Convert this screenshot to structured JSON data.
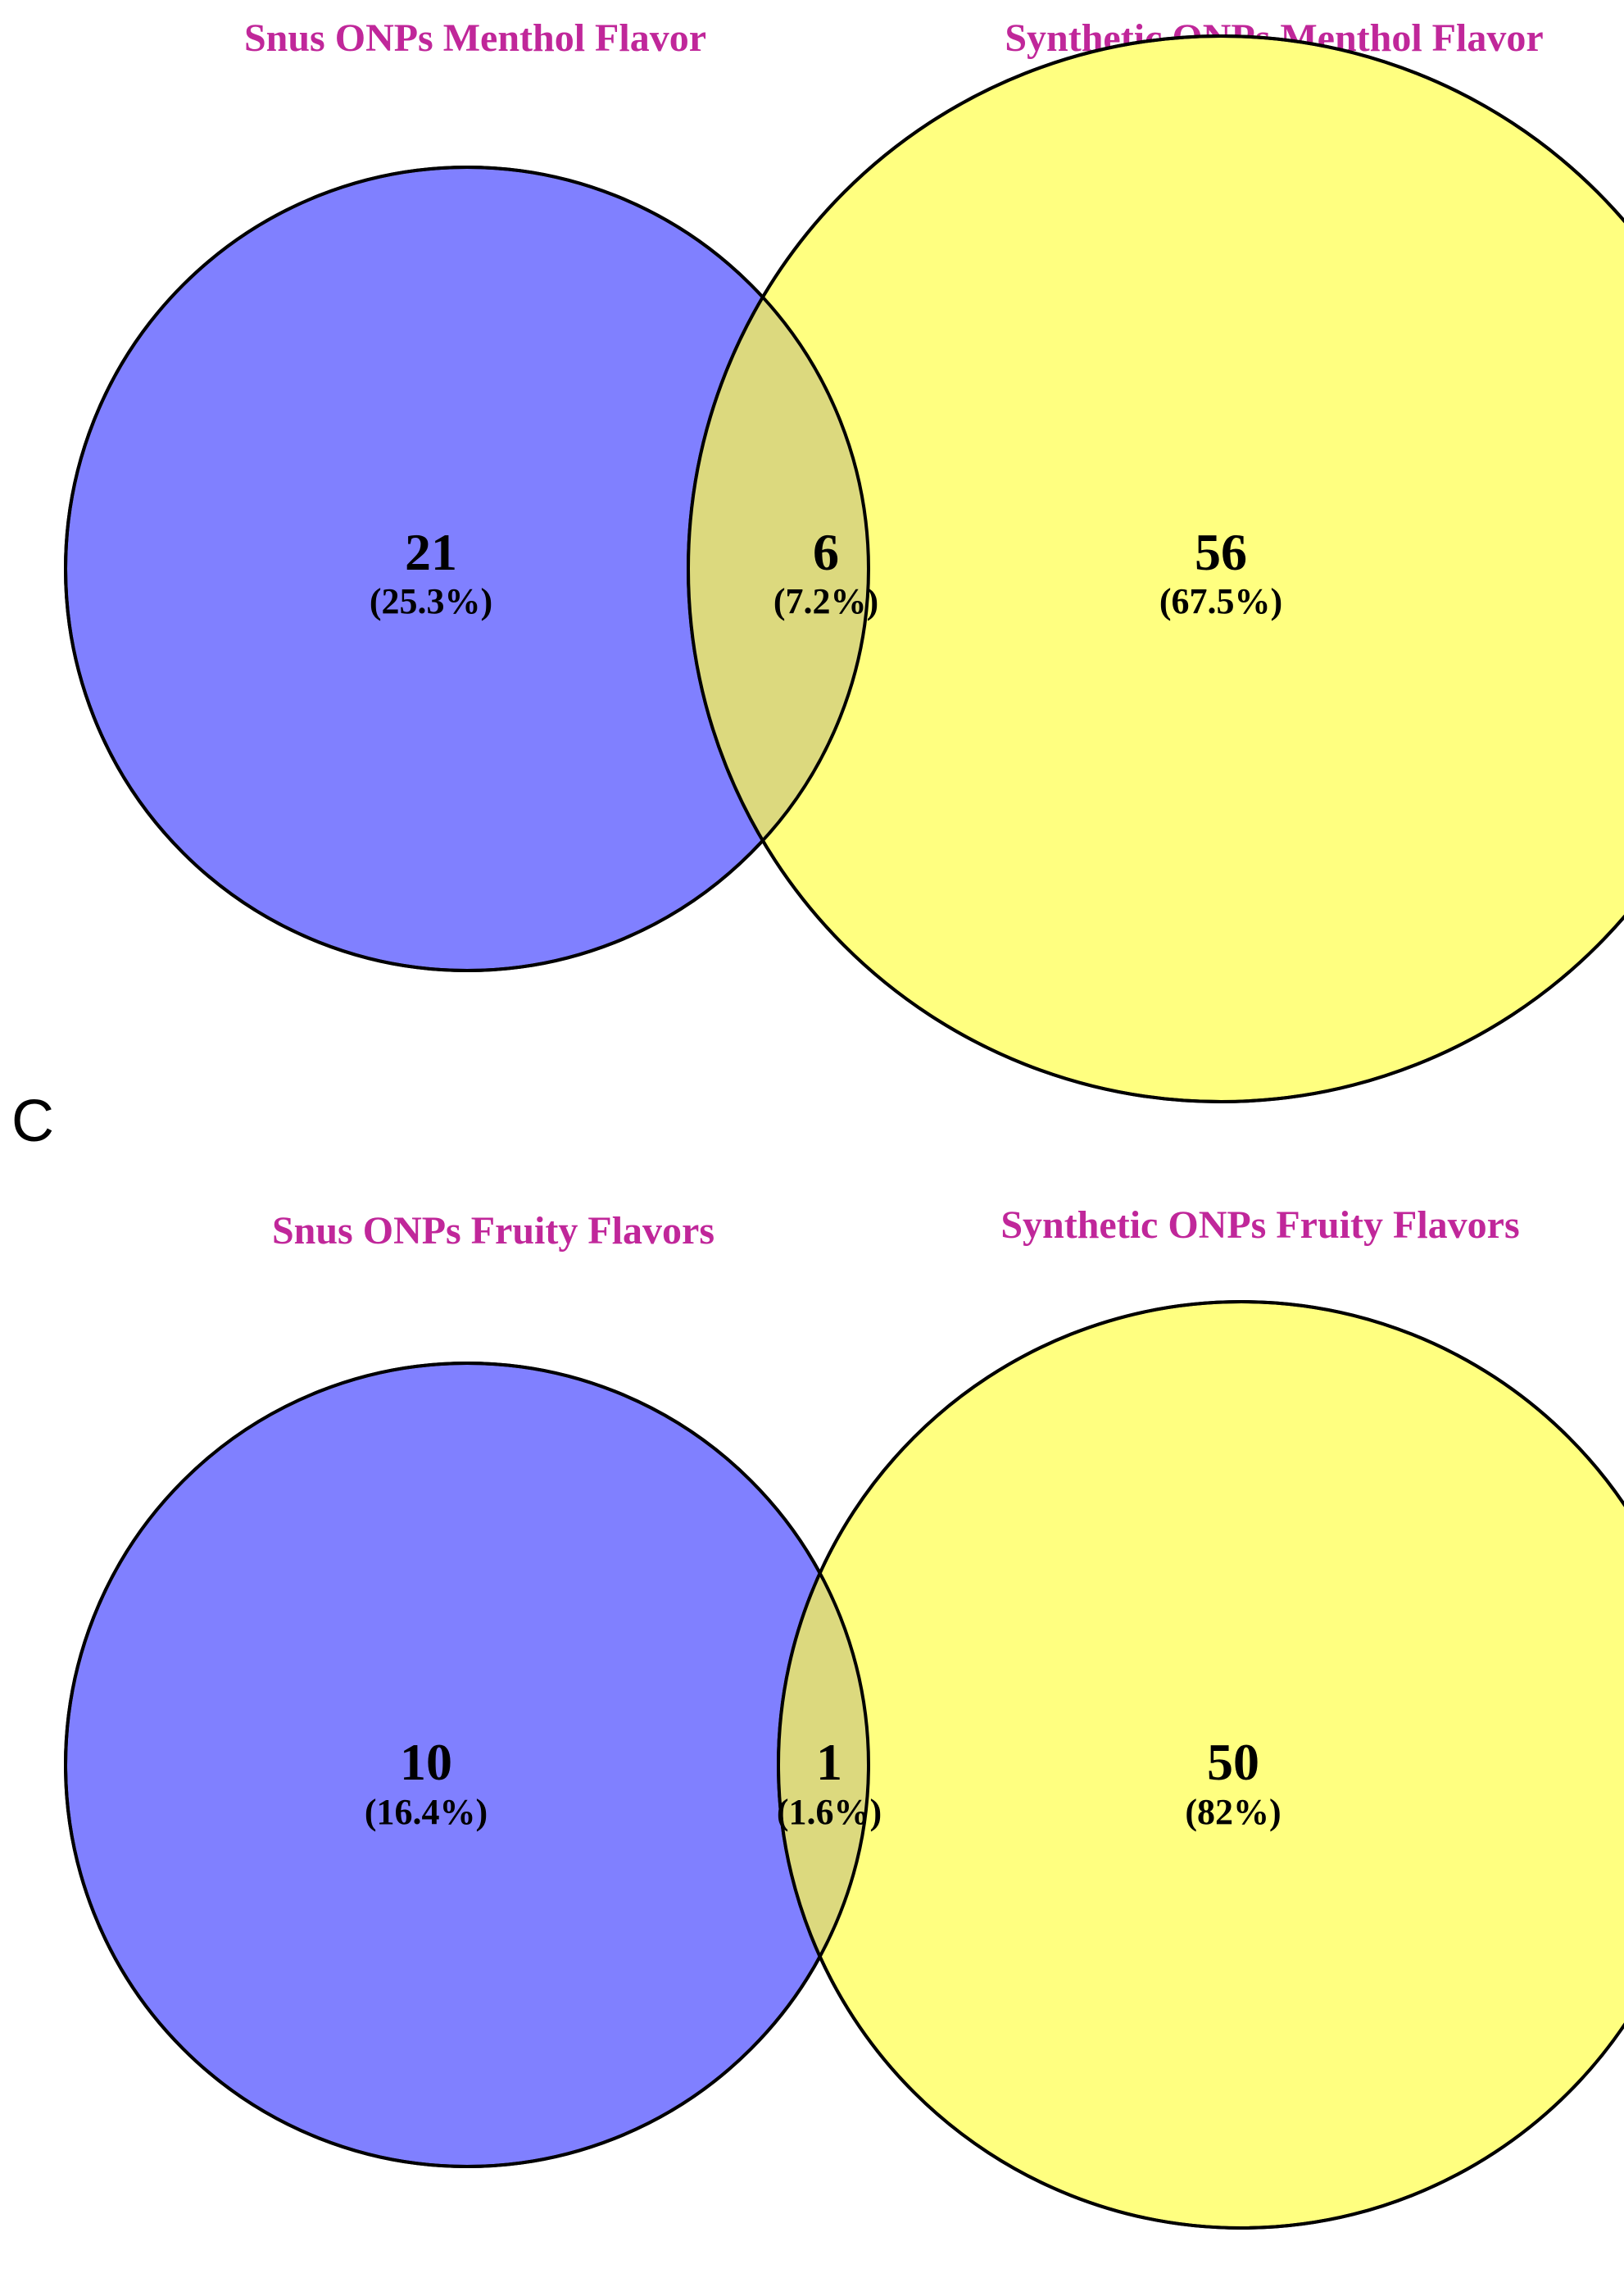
{
  "colors": {
    "left_set": "#8080ff",
    "right_set": "#ffff80",
    "overlap": "#dcd97e",
    "title": "#c0279a"
  },
  "panels": [
    {
      "letter": "",
      "left_title": "Snus ONPs Menthol Flavor",
      "right_title": "Synthetic ONPs Menthol Flavor",
      "left_only": {
        "count": "21",
        "pct": "(25.3%)"
      },
      "overlap": {
        "count": "6",
        "pct": "(7.2%)"
      },
      "right_only": {
        "count": "56",
        "pct": "(67.5%)"
      }
    },
    {
      "letter": "C",
      "left_title": "Snus ONPs Fruity Flavors",
      "right_title": "Synthetic ONPs Fruity Flavors",
      "left_only": {
        "count": "10",
        "pct": "(16.4%)"
      },
      "overlap": {
        "count": "1",
        "pct": "(1.6%)"
      },
      "right_only": {
        "count": "50",
        "pct": "(82%)"
      }
    }
  ]
}
